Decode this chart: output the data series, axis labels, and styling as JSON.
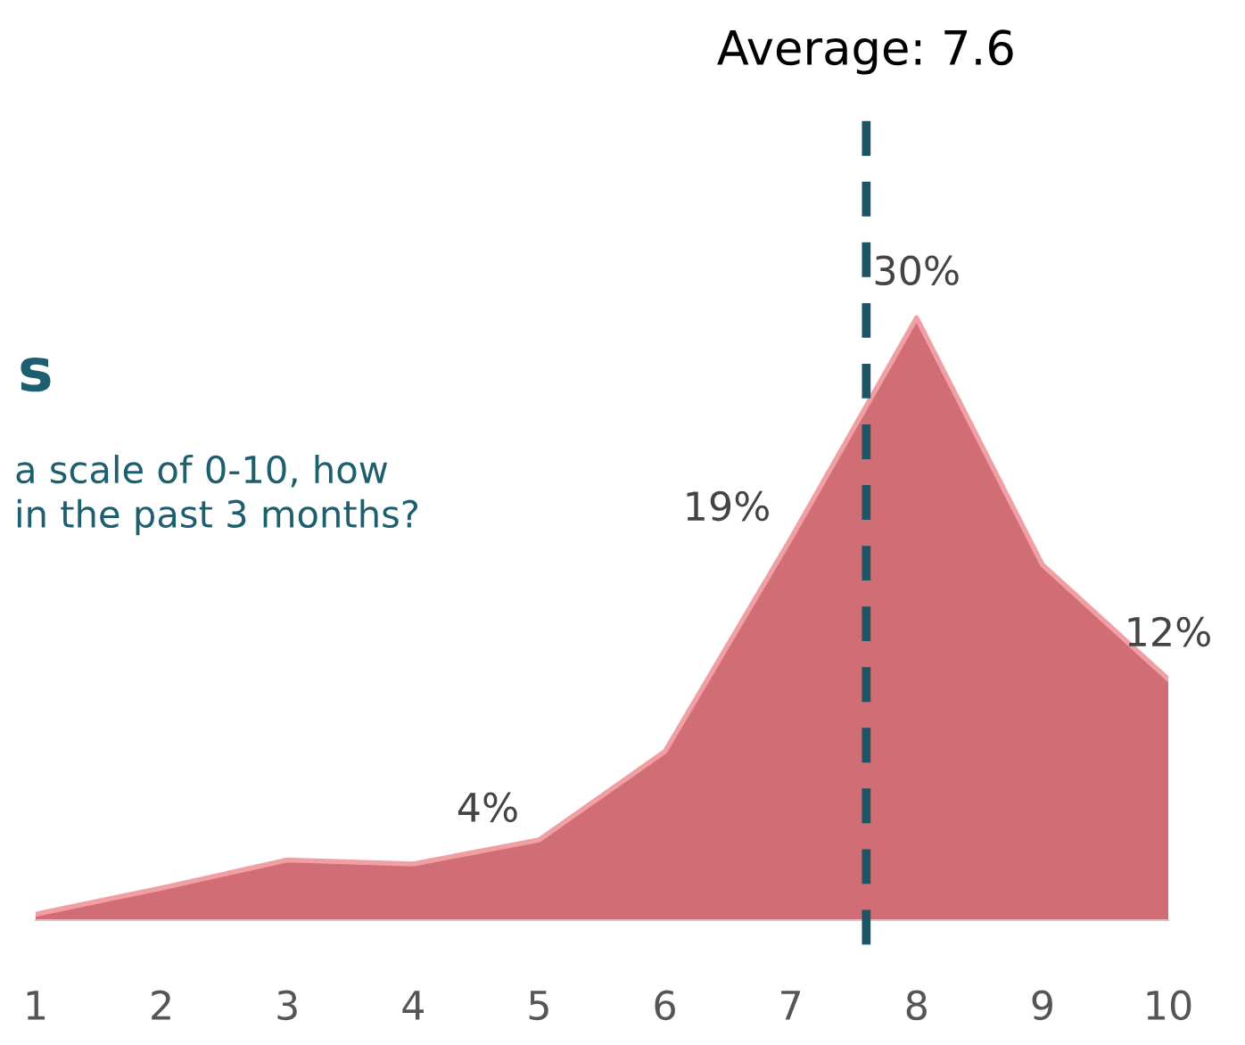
{
  "chart_data": {
    "type": "area",
    "title": "s",
    "subtitle": "a scale of 0-10, how\nin the past 3 months?",
    "x": [
      1,
      2,
      3,
      4,
      5,
      6,
      7,
      8,
      9,
      10
    ],
    "xlim": [
      1,
      10
    ],
    "xticks": [
      1,
      2,
      3,
      4,
      5,
      6,
      7,
      8,
      9,
      10
    ],
    "series": [
      {
        "color": "#c9545c",
        "values": [
          0.3,
          1.6,
          3.0,
          2.8,
          4,
          8.4,
          19,
          30,
          17.7,
          12
        ],
        "value_labels": [
          null,
          null,
          null,
          null,
          "4%",
          null,
          "19%",
          "30%",
          null,
          "12%"
        ]
      }
    ],
    "ref_lines": [
      {
        "axis": "x",
        "value": 7.6,
        "label": "Average: 7.6",
        "color": "#1d5566",
        "line_style": "dashed"
      }
    ],
    "grid": false,
    "legend": false
  }
}
